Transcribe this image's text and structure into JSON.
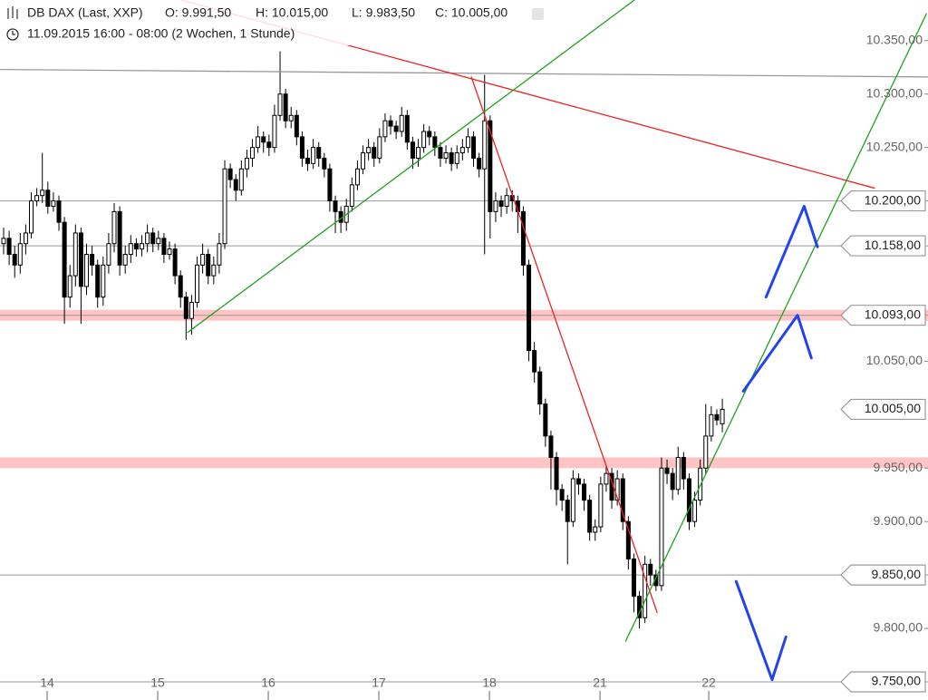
{
  "chart_data": {
    "type": "candlestick",
    "title": "DB DAX (Last, XXP)",
    "ohlc_text": [
      "O: 9.991,50",
      "H: 10.015,00",
      "L: 9.983,50",
      "C: 10.005,00"
    ],
    "subtitle": "11.09.2015 16:00 - 08:00 (2 Wochen, 1 Stunde)",
    "open": [
      10160,
      10165,
      10150,
      10140,
      10160,
      10170,
      10200,
      10205,
      10210,
      10195,
      10200,
      10180,
      10110,
      10130,
      10170,
      10120,
      10150,
      10140,
      10110,
      10140,
      10160,
      10190,
      10140,
      10150,
      10160,
      10155,
      10160,
      10170,
      10160,
      10165,
      10150,
      10155,
      10130,
      10110,
      10090,
      10105,
      10140,
      10150,
      10130,
      10140,
      10160,
      10230,
      10220,
      10210,
      10230,
      10240,
      10250,
      10260,
      10255,
      10250,
      10280,
      10300,
      10275,
      10280,
      10260,
      10240,
      10235,
      10250,
      10240,
      10230,
      10200,
      10190,
      10180,
      10195,
      10215,
      10230,
      10245,
      10250,
      10240,
      10260,
      10275,
      10270,
      10265,
      10280,
      10255,
      10240,
      10250,
      10265,
      10260,
      10250,
      10240,
      10245,
      10235,
      10245,
      10250,
      10260,
      10240,
      10230,
      10275,
      10190,
      10200,
      10195,
      10205,
      10200,
      10190,
      10140,
      10060,
      10040,
      10010,
      9980,
      9960,
      9930,
      9920,
      9900,
      9940,
      9935,
      9920,
      9890,
      9895,
      9935,
      9945,
      9920,
      9940,
      9900,
      9865,
      9830,
      9810,
      9860,
      9850,
      9840,
      9950,
      9945,
      9930,
      9960,
      9940,
      9900,
      9920,
      9950,
      9980,
      10000,
      9991.5
    ],
    "high": [
      10175,
      10172,
      10158,
      10170,
      10178,
      10208,
      10212,
      10245,
      10218,
      10208,
      10205,
      10185,
      10140,
      10178,
      10175,
      10160,
      10158,
      10145,
      10148,
      10170,
      10198,
      10195,
      10158,
      10168,
      10165,
      10168,
      10178,
      10175,
      10172,
      10170,
      10162,
      10160,
      10135,
      10115,
      10112,
      10148,
      10160,
      10155,
      10148,
      10170,
      10238,
      10235,
      10225,
      10238,
      10248,
      10258,
      10270,
      10265,
      10262,
      10290,
      10340,
      10305,
      10288,
      10285,
      10265,
      10248,
      10258,
      10255,
      10245,
      10235,
      10205,
      10195,
      10202,
      10222,
      10238,
      10252,
      10258,
      10255,
      10268,
      10282,
      10280,
      10275,
      10288,
      10285,
      10260,
      10258,
      10272,
      10270,
      10265,
      10255,
      10252,
      10250,
      10252,
      10258,
      10268,
      10265,
      10245,
      10318,
      10280,
      10208,
      10205,
      10212,
      10210,
      10205,
      10195,
      10145,
      10068,
      10045,
      10015,
      9985,
      9965,
      9935,
      9925,
      9948,
      9945,
      9940,
      9925,
      9902,
      9942,
      9952,
      9950,
      9948,
      9945,
      9905,
      9870,
      9835,
      9868,
      9865,
      9855,
      9960,
      9958,
      9950,
      9970,
      9965,
      9945,
      9928,
      9958,
      10010,
      10008,
      10005,
      10015
    ],
    "low": [
      10150,
      10140,
      10128,
      10132,
      10150,
      10165,
      10195,
      10198,
      10188,
      10190,
      10172,
      10085,
      10100,
      10120,
      10085,
      10112,
      10130,
      10100,
      10102,
      10132,
      10152,
      10130,
      10132,
      10142,
      10148,
      10148,
      10152,
      10152,
      10154,
      10142,
      10145,
      10122,
      10100,
      10070,
      10075,
      10100,
      10132,
      10122,
      10122,
      10132,
      10155,
      10212,
      10200,
      10205,
      10222,
      10232,
      10245,
      10245,
      10242,
      10245,
      10275,
      10268,
      10268,
      10252,
      10232,
      10228,
      10230,
      10232,
      10222,
      10190,
      10170,
      10170,
      10172,
      10190,
      10210,
      10225,
      10238,
      10232,
      10235,
      10255,
      10262,
      10258,
      10260,
      10248,
      10230,
      10232,
      10245,
      10252,
      10242,
      10232,
      10235,
      10228,
      10230,
      10238,
      10245,
      10232,
      10222,
      10150,
      10165,
      10180,
      10185,
      10188,
      10190,
      10170,
      10130,
      10050,
      10030,
      10000,
      9970,
      9930,
      9915,
      9910,
      9860,
      9895,
      9925,
      9910,
      9882,
      9882,
      9890,
      9928,
      9912,
      9915,
      9892,
      9855,
      9815,
      9800,
      9805,
      9840,
      9835,
      9835,
      9935,
      9920,
      9925,
      9930,
      9892,
      9895,
      9915,
      9945,
      9975,
      9990,
      9983.5
    ],
    "close": [
      10165,
      10150,
      10140,
      10160,
      10170,
      10200,
      10205,
      10210,
      10195,
      10200,
      10180,
      10110,
      10130,
      10170,
      10120,
      10150,
      10140,
      10110,
      10140,
      10160,
      10190,
      10140,
      10150,
      10160,
      10155,
      10160,
      10170,
      10160,
      10165,
      10150,
      10155,
      10130,
      10110,
      10090,
      10105,
      10140,
      10150,
      10130,
      10140,
      10160,
      10230,
      10220,
      10210,
      10230,
      10240,
      10250,
      10260,
      10255,
      10250,
      10280,
      10300,
      10275,
      10280,
      10260,
      10240,
      10235,
      10250,
      10240,
      10230,
      10200,
      10190,
      10180,
      10195,
      10215,
      10230,
      10245,
      10250,
      10240,
      10260,
      10275,
      10270,
      10265,
      10280,
      10255,
      10240,
      10250,
      10265,
      10260,
      10250,
      10240,
      10245,
      10235,
      10245,
      10250,
      10260,
      10240,
      10230,
      10275,
      10190,
      10200,
      10195,
      10205,
      10200,
      10190,
      10140,
      10060,
      10040,
      10010,
      9980,
      9960,
      9930,
      9920,
      9900,
      9940,
      9935,
      9920,
      9890,
      9895,
      9935,
      9945,
      9920,
      9940,
      9900,
      9865,
      9830,
      9810,
      9860,
      9850,
      9840,
      9950,
      9945,
      9930,
      9960,
      9940,
      9900,
      9920,
      9950,
      9980,
      10000,
      9995,
      10005
    ],
    "up_color": "#ffffff",
    "down_color": "#000000",
    "xlim": [
      -0.656,
      167.2
    ],
    "ylim": [
      9733,
      10388
    ],
    "xticks": [
      {
        "value": 7.87,
        "label": "14"
      },
      {
        "value": 27.87,
        "label": "15"
      },
      {
        "value": 47.87,
        "label": "16"
      },
      {
        "value": 67.87,
        "label": "17"
      },
      {
        "value": 87.87,
        "label": "18"
      },
      {
        "value": 107.87,
        "label": "21"
      },
      {
        "value": 127.54,
        "label": "22"
      }
    ],
    "yticks": [
      {
        "value": 10350,
        "label": "10.350,00"
      },
      {
        "value": 10300,
        "label": "10.300,00"
      },
      {
        "value": 10250,
        "label": "10.250,00"
      },
      {
        "value": 10050,
        "label": "10.050,00"
      },
      {
        "value": 9950,
        "label": "9.950,00"
      },
      {
        "value": 9900,
        "label": "9.900,00"
      },
      {
        "value": 9800,
        "label": "9.800,00"
      }
    ],
    "levels": [
      {
        "value": 10200,
        "label": "10.200,00",
        "line": true
      },
      {
        "value": 10158,
        "label": "10.158,00",
        "line": true
      },
      {
        "value": 10093,
        "label": "10.093,00",
        "line": true
      },
      {
        "value": 10005,
        "label": "10.005,00",
        "line": false
      },
      {
        "value": 9850,
        "label": "9.850,00",
        "line": true
      },
      {
        "value": 9750,
        "label": "9.750,00",
        "line": true
      }
    ],
    "level_color": "#999999",
    "bands": [
      10093,
      9955
    ],
    "band_color": "#ffc4c4",
    "trendlines": [
      {
        "color": "#999999",
        "x": [
          -0.656,
          167.2
        ],
        "y": [
          10323,
          10316
        ]
      },
      {
        "color": "#ee2222",
        "x": [
          32.1,
          157.5
        ],
        "y": [
          10388,
          10212
        ]
      },
      {
        "color": "#ee2222",
        "x": [
          84.6,
          118.2
        ],
        "y": [
          10316,
          9815
        ]
      },
      {
        "color": "#22a022",
        "x": [
          33.3,
          114.1
        ],
        "y": [
          10077,
          10388
        ]
      },
      {
        "color": "#22a022",
        "x": [
          112.5,
          166.9
        ],
        "y": [
          9788,
          10375
        ]
      }
    ],
    "arrows": [
      {
        "color": "#2244ee",
        "x": [
          137.9,
          144.8,
          147.2
        ],
        "y": [
          10110,
          10195,
          10157
        ]
      },
      {
        "color": "#2244ee",
        "x": [
          133.8,
          143.6,
          146.1
        ],
        "y": [
          10022,
          10093,
          10053
        ]
      },
      {
        "color": "#2244ee",
        "x": [
          132.5,
          139.0,
          141.5
        ],
        "y": [
          9844,
          9752,
          9792
        ]
      }
    ]
  }
}
